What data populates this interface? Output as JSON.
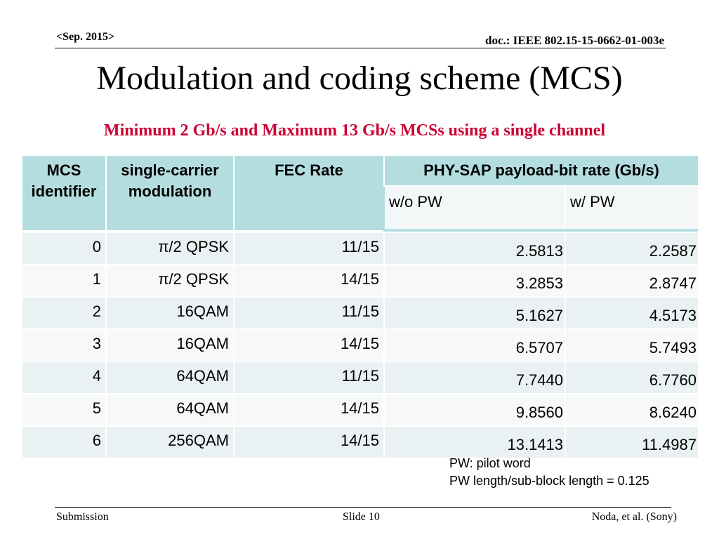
{
  "header": {
    "date": "<Sep. 2015>",
    "doc_id": "doc.: IEEE 802.15-15-0662-01-003e"
  },
  "title": "Modulation and coding scheme (MCS)",
  "subtitle": "Minimum 2 Gb/s and Maximum 13 Gb/s MCSs using a single channel",
  "table": {
    "headers": {
      "mcs_line1": "MCS",
      "mcs_line2": "identifier",
      "mod_line1": "single-carrier",
      "mod_line2": "modulation",
      "fec": "FEC Rate",
      "rate_group": "PHY-SAP payload-bit rate (Gb/s)",
      "wo_pw": "w/o PW",
      "w_pw": "w/ PW"
    },
    "rows": [
      {
        "mcs": "0",
        "mod": "π/2 QPSK",
        "fec": "11/15",
        "wo_pw": "2.5813",
        "w_pw": "2.2587"
      },
      {
        "mcs": "1",
        "mod": "π/2 QPSK",
        "fec": "14/15",
        "wo_pw": "3.2853",
        "w_pw": "2.8747"
      },
      {
        "mcs": "2",
        "mod": "16QAM",
        "fec": "11/15",
        "wo_pw": "5.1627",
        "w_pw": "4.5173"
      },
      {
        "mcs": "3",
        "mod": "16QAM",
        "fec": "14/15",
        "wo_pw": "6.5707",
        "w_pw": "5.7493"
      },
      {
        "mcs": "4",
        "mod": "64QAM",
        "fec": "11/15",
        "wo_pw": "7.7440",
        "w_pw": "6.7760"
      },
      {
        "mcs": "5",
        "mod": "64QAM",
        "fec": "14/15",
        "wo_pw": "9.8560",
        "w_pw": "8.6240"
      },
      {
        "mcs": "6",
        "mod": "256QAM",
        "fec": "14/15",
        "wo_pw": "13.1413",
        "w_pw": "11.4987"
      }
    ],
    "colors": {
      "header_bg": "#b4dde0",
      "row_odd": "#e9f1f2",
      "row_even": "#f6f8f9",
      "subheader_bg": "#f4f7f8"
    }
  },
  "notes": {
    "line1": "PW: pilot word",
    "line2": "PW length/sub-block length = 0.125"
  },
  "footer": {
    "left": "Submission",
    "center": "Slide 10",
    "right": "Noda, et al. (Sony)"
  }
}
